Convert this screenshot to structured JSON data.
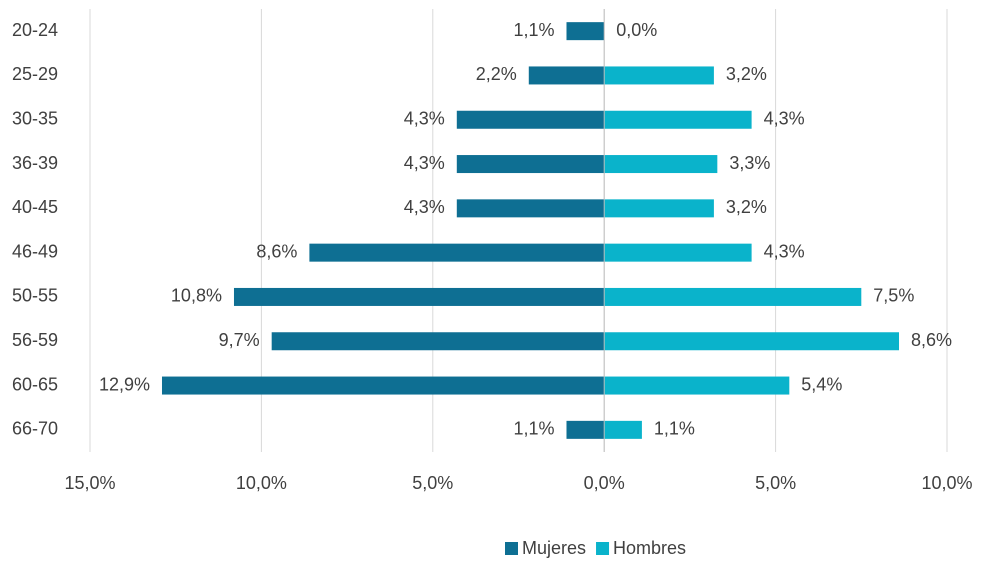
{
  "chart_data": {
    "type": "bar",
    "orientation": "horizontal",
    "categories": [
      "20-24",
      "25-29",
      "30-35",
      "36-39",
      "40-45",
      "46-49",
      "50-55",
      "56-59",
      "60-65",
      "66-70"
    ],
    "series": [
      {
        "name": "Mujeres",
        "color": "#0e6f93",
        "values": [
          -1.1,
          -2.2,
          -4.3,
          -4.3,
          -4.3,
          -8.6,
          -10.8,
          -9.7,
          -12.9,
          -1.1
        ],
        "value_labels": [
          "1,1%",
          "2,2%",
          "4,3%",
          "4,3%",
          "4,3%",
          "8,6%",
          "10,8%",
          "9,7%",
          "12,9%",
          "1,1%"
        ]
      },
      {
        "name": "Hombres",
        "color": "#0ab3cb",
        "values": [
          0.0,
          3.2,
          4.3,
          3.3,
          3.2,
          4.3,
          7.5,
          8.6,
          5.4,
          1.1
        ],
        "value_labels": [
          "0,0%",
          "3,2%",
          "4,3%",
          "3,3%",
          "3,2%",
          "4,3%",
          "7,5%",
          "8,6%",
          "5,4%",
          "1,1%"
        ]
      }
    ],
    "xlim": [
      -15,
      10
    ],
    "xticks": [
      {
        "value": -15,
        "label": "15,0%"
      },
      {
        "value": -10,
        "label": "10,0%"
      },
      {
        "value": -5,
        "label": "5,0%"
      },
      {
        "value": 0,
        "label": "0,0%"
      },
      {
        "value": 5,
        "label": "5,0%"
      },
      {
        "value": 10,
        "label": "10,0%"
      }
    ],
    "grid": true,
    "legend": "bottom"
  }
}
